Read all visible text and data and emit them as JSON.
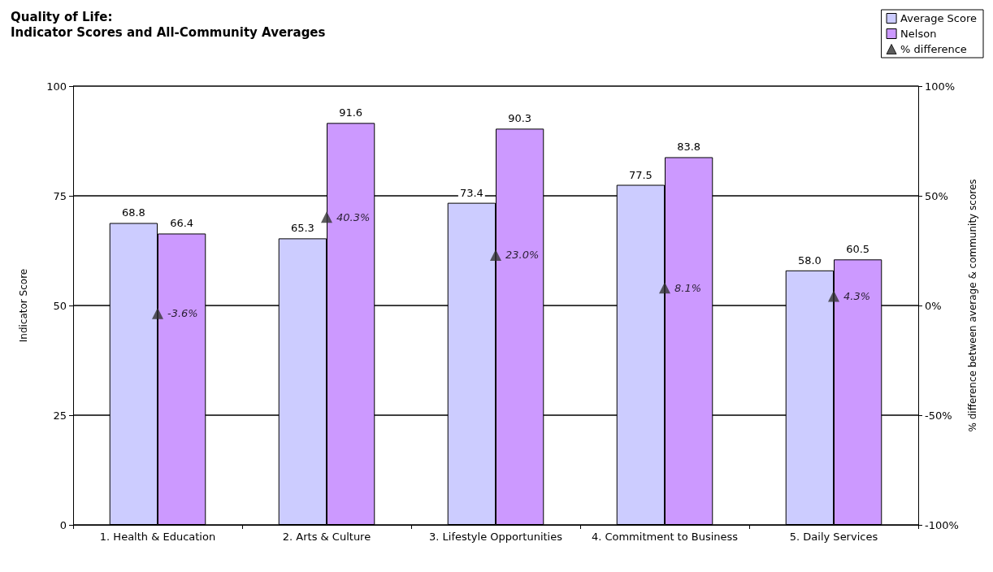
{
  "chart_data": {
    "type": "bar",
    "title": "Quality of Life:",
    "subtitle": "Indicator Scores and All-Community Averages",
    "ylabel": "Indicator Score",
    "y2label": "% difference between average & community scores",
    "categories": [
      "1. Health & Education",
      "2. Arts & Culture",
      "3. Lifestyle Opportunities",
      "4. Commitment to Business",
      "5. Daily Services"
    ],
    "series": [
      {
        "name": "Average Score",
        "color": "#ccccff",
        "values": [
          68.8,
          65.3,
          73.4,
          77.5,
          58.0
        ],
        "value_labels": [
          "68.8",
          "65.3",
          "73.4",
          "77.5",
          "58.0"
        ]
      },
      {
        "name": "Nelson",
        "color": "#cc99ff",
        "values": [
          66.4,
          91.6,
          90.3,
          83.8,
          60.5
        ],
        "value_labels": [
          "66.4",
          "91.6",
          "90.3",
          "83.8",
          "60.5"
        ]
      },
      {
        "name": "% difference",
        "type": "scatter",
        "axis": "y2",
        "color": "#333333",
        "x": [
          "1. Health & Education",
          "2. Arts & Culture",
          "3. Lifestyle Opportunities",
          "4. Commitment to Business",
          "5. Daily Services"
        ],
        "values": [
          -3.6,
          40.3,
          23.0,
          8.1,
          4.3
        ],
        "value_labels": [
          "-3.6%",
          "40.3%",
          "23.0%",
          "8.1%",
          "4.3%"
        ]
      }
    ],
    "ylim": [
      0,
      100
    ],
    "yticks": [
      0,
      25,
      50,
      75,
      100
    ],
    "y2lim": [
      -100,
      100
    ],
    "y2ticks": [
      {
        "value": -100,
        "label": "-100%"
      },
      {
        "value": -50,
        "label": "-50%"
      },
      {
        "value": 0,
        "label": "0%"
      },
      {
        "value": 50,
        "label": "50%"
      },
      {
        "value": 100,
        "label": "100%"
      }
    ],
    "grid": "y",
    "legend": "top right",
    "marker": "triangle"
  }
}
